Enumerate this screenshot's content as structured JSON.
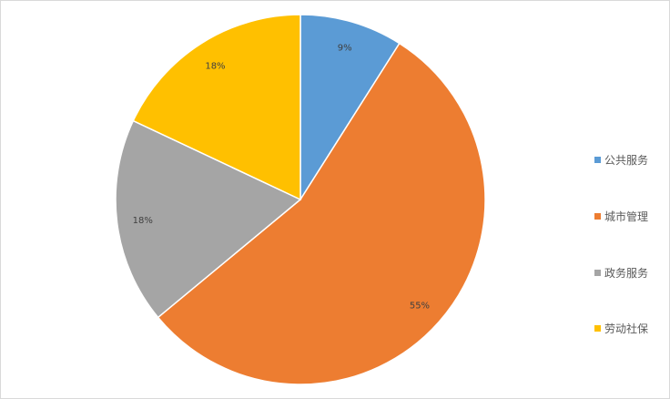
{
  "chart_data": {
    "type": "pie",
    "categories": [
      "公共服务",
      "城市管理",
      "政务服务",
      "劳动社保"
    ],
    "values": [
      9,
      55,
      18,
      18
    ],
    "data_labels": [
      "9%",
      "55%",
      "18%",
      "18%"
    ],
    "colors": [
      "#5b9bd5",
      "#ed7d31",
      "#a5a5a5",
      "#ffc000"
    ],
    "start_angle": "top, clockwise",
    "legend": "right"
  }
}
